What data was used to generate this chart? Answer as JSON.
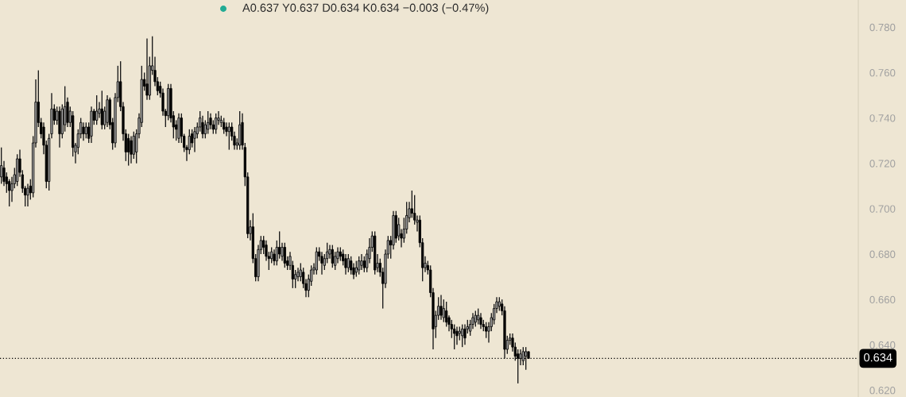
{
  "chart_data": {
    "type": "candlestick",
    "categories": [
      null,
      null,
      null,
      null,
      null,
      null,
      null,
      null,
      null,
      null,
      null,
      null,
      null,
      null,
      null,
      null,
      null,
      null,
      null,
      null,
      null,
      null,
      null,
      null,
      null,
      null,
      null,
      null,
      null,
      null,
      null,
      null,
      null,
      null,
      null,
      null,
      null,
      null,
      null,
      null,
      null,
      null,
      null,
      null,
      null,
      null,
      null,
      null,
      null,
      null,
      null,
      null,
      null,
      null,
      null,
      null,
      null,
      null,
      null,
      null,
      null,
      null,
      null,
      null,
      null,
      null,
      null,
      null,
      null,
      null,
      null,
      null,
      null,
      null,
      null,
      null,
      null,
      null,
      null,
      null,
      null,
      null,
      null,
      null,
      null,
      null,
      null,
      null,
      null,
      null,
      null,
      null,
      null,
      null,
      null,
      null,
      null,
      null,
      null,
      null,
      null,
      null,
      null,
      null,
      null,
      null,
      null,
      null,
      null,
      null,
      null,
      null,
      null,
      null,
      null,
      null,
      null,
      null,
      null,
      null,
      null,
      null,
      null,
      null,
      null,
      null,
      null,
      null,
      null,
      null,
      null,
      null,
      null,
      null,
      null,
      null,
      null,
      null,
      null,
      null,
      null,
      null,
      null,
      null,
      null,
      null,
      null,
      null,
      null,
      null,
      null,
      null,
      null,
      null,
      null,
      null,
      null,
      null,
      null,
      null,
      null,
      null,
      null,
      null,
      null,
      null,
      null,
      null,
      null,
      null,
      null,
      null,
      null,
      null,
      null,
      null,
      null,
      null,
      null,
      null,
      null,
      null,
      null,
      null,
      null,
      null,
      null,
      null,
      null,
      null,
      null,
      null,
      null,
      null,
      null,
      null,
      null,
      null,
      null,
      null,
      null,
      null,
      null,
      null,
      null,
      null,
      null,
      null,
      null,
      null,
      null,
      null,
      null,
      null,
      null,
      null,
      null,
      null,
      null,
      null,
      null,
      null,
      null,
      null,
      null,
      null,
      null,
      null,
      null,
      null,
      null,
      null,
      null,
      null,
      null,
      null,
      null,
      null,
      null,
      null,
      null,
      null,
      null,
      null,
      null,
      null,
      null,
      null,
      null,
      null,
      null,
      null,
      null,
      null,
      null,
      null,
      null,
      null,
      null,
      null,
      null,
      null,
      null,
      null,
      null,
      null,
      null,
      null,
      null,
      null,
      null,
      null,
      null,
      null,
      null,
      null,
      null,
      null,
      null,
      null,
      null,
      null,
      null,
      null,
      null,
      null,
      null,
      null,
      null,
      null,
      null,
      null,
      null,
      null,
      null,
      null,
      null,
      null,
      null,
      null,
      null,
      null,
      null,
      null,
      null,
      null,
      null,
      null,
      null,
      null,
      null,
      null,
      null,
      null,
      null,
      null,
      null,
      null,
      null,
      null,
      null,
      null,
      null,
      null
    ],
    "ohlc": [
      [
        0.714,
        0.727,
        0.711,
        0.719
      ],
      [
        0.718,
        0.721,
        0.71,
        0.712
      ],
      [
        0.714,
        0.716,
        0.707,
        0.711
      ],
      [
        0.712,
        0.713,
        0.701,
        0.708
      ],
      [
        0.708,
        0.714,
        0.703,
        0.711
      ],
      [
        0.711,
        0.718,
        0.709,
        0.715
      ],
      [
        0.712,
        0.724,
        0.71,
        0.722
      ],
      [
        0.722,
        0.726,
        0.714,
        0.716
      ],
      [
        0.715,
        0.717,
        0.707,
        0.709
      ],
      [
        0.709,
        0.71,
        0.701,
        0.706
      ],
      [
        0.706,
        0.711,
        0.701,
        0.709
      ],
      [
        0.71,
        0.713,
        0.704,
        0.707
      ],
      [
        0.707,
        0.732,
        0.705,
        0.729
      ],
      [
        0.729,
        0.757,
        0.727,
        0.747
      ],
      [
        0.747,
        0.761,
        0.736,
        0.738
      ],
      [
        0.738,
        0.74,
        0.731,
        0.733
      ],
      [
        0.736,
        0.738,
        0.724,
        0.728
      ],
      [
        0.728,
        0.73,
        0.709,
        0.712
      ],
      [
        0.712,
        0.733,
        0.708,
        0.731
      ],
      [
        0.733,
        0.751,
        0.731,
        0.744
      ],
      [
        0.744,
        0.746,
        0.737,
        0.739
      ],
      [
        0.739,
        0.745,
        0.737,
        0.743
      ],
      [
        0.743,
        0.745,
        0.727,
        0.733
      ],
      [
        0.733,
        0.746,
        0.731,
        0.744
      ],
      [
        0.737,
        0.754,
        0.734,
        0.745
      ],
      [
        0.747,
        0.749,
        0.736,
        0.738
      ],
      [
        0.738,
        0.745,
        0.736,
        0.743
      ],
      [
        0.741,
        0.743,
        0.723,
        0.727
      ],
      [
        0.725,
        0.729,
        0.72,
        0.728
      ],
      [
        0.727,
        0.735,
        0.724,
        0.733
      ],
      [
        0.733,
        0.74,
        0.731,
        0.738
      ],
      [
        0.736,
        0.738,
        0.73,
        0.733
      ],
      [
        0.733,
        0.738,
        0.731,
        0.736
      ],
      [
        0.736,
        0.738,
        0.729,
        0.731
      ],
      [
        0.732,
        0.745,
        0.729,
        0.743
      ],
      [
        0.743,
        0.744,
        0.737,
        0.739
      ],
      [
        0.739,
        0.75,
        0.737,
        0.743
      ],
      [
        0.742,
        0.747,
        0.74,
        0.744
      ],
      [
        0.744,
        0.752,
        0.735,
        0.737
      ],
      [
        0.737,
        0.745,
        0.735,
        0.743
      ],
      [
        0.738,
        0.75,
        0.736,
        0.748
      ],
      [
        0.748,
        0.749,
        0.735,
        0.737
      ],
      [
        0.738,
        0.74,
        0.726,
        0.729
      ],
      [
        0.729,
        0.751,
        0.727,
        0.749
      ],
      [
        0.749,
        0.763,
        0.747,
        0.756
      ],
      [
        0.756,
        0.765,
        0.743,
        0.745
      ],
      [
        0.745,
        0.747,
        0.73,
        0.733
      ],
      [
        0.733,
        0.735,
        0.721,
        0.725
      ],
      [
        0.731,
        0.733,
        0.719,
        0.725
      ],
      [
        0.73,
        0.732,
        0.72,
        0.724
      ],
      [
        0.724,
        0.734,
        0.722,
        0.732
      ],
      [
        0.725,
        0.735,
        0.72,
        0.733
      ],
      [
        0.733,
        0.742,
        0.731,
        0.74
      ],
      [
        0.738,
        0.763,
        0.736,
        0.757
      ],
      [
        0.757,
        0.76,
        0.752,
        0.754
      ],
      [
        0.755,
        0.775,
        0.748,
        0.75
      ],
      [
        0.75,
        0.767,
        0.748,
        0.763
      ],
      [
        0.761,
        0.776,
        0.759,
        0.763
      ],
      [
        0.761,
        0.767,
        0.754,
        0.756
      ],
      [
        0.756,
        0.758,
        0.75,
        0.752
      ],
      [
        0.754,
        0.756,
        0.749,
        0.751
      ],
      [
        0.751,
        0.753,
        0.741,
        0.743
      ],
      [
        0.743,
        0.744,
        0.736,
        0.741
      ],
      [
        0.741,
        0.755,
        0.739,
        0.753
      ],
      [
        0.753,
        0.755,
        0.738,
        0.74
      ],
      [
        0.741,
        0.743,
        0.731,
        0.736
      ],
      [
        0.737,
        0.739,
        0.73,
        0.735
      ],
      [
        0.731,
        0.742,
        0.729,
        0.74
      ],
      [
        0.74,
        0.742,
        0.729,
        0.732
      ],
      [
        0.732,
        0.733,
        0.725,
        0.727
      ],
      [
        0.727,
        0.728,
        0.721,
        0.726
      ],
      [
        0.726,
        0.735,
        0.724,
        0.732
      ],
      [
        0.733,
        0.735,
        0.727,
        0.729
      ],
      [
        0.731,
        0.736,
        0.725,
        0.734
      ],
      [
        0.733,
        0.738,
        0.731,
        0.736
      ],
      [
        0.736,
        0.743,
        0.734,
        0.74
      ],
      [
        0.738,
        0.741,
        0.731,
        0.733
      ],
      [
        0.733,
        0.739,
        0.731,
        0.737
      ],
      [
        0.735,
        0.743,
        0.733,
        0.738
      ],
      [
        0.74,
        0.742,
        0.735,
        0.737
      ],
      [
        0.737,
        0.739,
        0.733,
        0.735
      ],
      [
        0.735,
        0.742,
        0.733,
        0.74
      ],
      [
        0.739,
        0.743,
        0.737,
        0.74
      ],
      [
        0.738,
        0.741,
        0.736,
        0.739
      ],
      [
        0.738,
        0.74,
        0.733,
        0.735
      ],
      [
        0.736,
        0.738,
        0.732,
        0.734
      ],
      [
        0.734,
        0.738,
        0.726,
        0.736
      ],
      [
        0.736,
        0.738,
        0.73,
        0.732
      ],
      [
        0.732,
        0.734,
        0.726,
        0.728
      ],
      [
        0.728,
        0.731,
        0.726,
        0.729
      ],
      [
        0.728,
        0.743,
        0.726,
        0.737
      ],
      [
        0.738,
        0.742,
        0.726,
        0.728
      ],
      [
        0.727,
        0.729,
        0.71,
        0.714
      ],
      [
        0.714,
        0.716,
        0.687,
        0.689
      ],
      [
        0.689,
        0.695,
        0.686,
        0.692
      ],
      [
        0.692,
        0.698,
        0.676,
        0.678
      ],
      [
        0.678,
        0.68,
        0.668,
        0.67
      ],
      [
        0.67,
        0.684,
        0.668,
        0.682
      ],
      [
        0.682,
        0.688,
        0.68,
        0.686
      ],
      [
        0.686,
        0.688,
        0.68,
        0.683
      ],
      [
        0.684,
        0.686,
        0.677,
        0.679
      ],
      [
        0.679,
        0.681,
        0.673,
        0.678
      ],
      [
        0.678,
        0.683,
        0.676,
        0.681
      ],
      [
        0.68,
        0.682,
        0.675,
        0.677
      ],
      [
        0.677,
        0.686,
        0.675,
        0.683
      ],
      [
        0.683,
        0.69,
        0.678,
        0.68
      ],
      [
        0.679,
        0.685,
        0.677,
        0.683
      ],
      [
        0.683,
        0.685,
        0.674,
        0.676
      ],
      [
        0.677,
        0.679,
        0.673,
        0.675
      ],
      [
        0.675,
        0.681,
        0.673,
        0.679
      ],
      [
        0.675,
        0.677,
        0.665,
        0.669
      ],
      [
        0.669,
        0.673,
        0.665,
        0.671
      ],
      [
        0.67,
        0.674,
        0.668,
        0.672
      ],
      [
        0.67,
        0.676,
        0.668,
        0.673
      ],
      [
        0.672,
        0.674,
        0.665,
        0.667
      ],
      [
        0.667,
        0.669,
        0.661,
        0.664
      ],
      [
        0.664,
        0.671,
        0.661,
        0.669
      ],
      [
        0.668,
        0.675,
        0.666,
        0.673
      ],
      [
        0.673,
        0.676,
        0.671,
        0.674
      ],
      [
        0.673,
        0.683,
        0.671,
        0.681
      ],
      [
        0.681,
        0.683,
        0.677,
        0.679
      ],
      [
        0.679,
        0.681,
        0.671,
        0.676
      ],
      [
        0.675,
        0.68,
        0.673,
        0.678
      ],
      [
        0.678,
        0.685,
        0.676,
        0.681
      ],
      [
        0.68,
        0.684,
        0.678,
        0.682
      ],
      [
        0.682,
        0.684,
        0.674,
        0.676
      ],
      [
        0.675,
        0.681,
        0.673,
        0.679
      ],
      [
        0.678,
        0.683,
        0.676,
        0.681
      ],
      [
        0.681,
        0.683,
        0.677,
        0.679
      ],
      [
        0.68,
        0.682,
        0.675,
        0.677
      ],
      [
        0.678,
        0.68,
        0.671,
        0.674
      ],
      [
        0.674,
        0.68,
        0.672,
        0.678
      ],
      [
        0.677,
        0.679,
        0.671,
        0.673
      ],
      [
        0.674,
        0.676,
        0.669,
        0.671
      ],
      [
        0.672,
        0.677,
        0.67,
        0.674
      ],
      [
        0.673,
        0.679,
        0.671,
        0.677
      ],
      [
        0.675,
        0.68,
        0.673,
        0.677
      ],
      [
        0.677,
        0.679,
        0.672,
        0.674
      ],
      [
        0.674,
        0.682,
        0.672,
        0.68
      ],
      [
        0.678,
        0.687,
        0.676,
        0.683
      ],
      [
        0.683,
        0.69,
        0.681,
        0.688
      ],
      [
        0.688,
        0.69,
        0.671,
        0.673
      ],
      [
        0.674,
        0.68,
        0.672,
        0.676
      ],
      [
        0.676,
        0.678,
        0.67,
        0.672
      ],
      [
        0.672,
        0.674,
        0.656,
        0.667
      ],
      [
        0.667,
        0.682,
        0.665,
        0.68
      ],
      [
        0.68,
        0.688,
        0.678,
        0.686
      ],
      [
        0.686,
        0.688,
        0.678,
        0.684
      ],
      [
        0.684,
        0.699,
        0.682,
        0.697
      ],
      [
        0.697,
        0.699,
        0.685,
        0.687
      ],
      [
        0.688,
        0.696,
        0.686,
        0.693
      ],
      [
        0.689,
        0.691,
        0.683,
        0.687
      ],
      [
        0.687,
        0.696,
        0.685,
        0.691
      ],
      [
        0.691,
        0.703,
        0.689,
        0.697
      ],
      [
        0.696,
        0.703,
        0.694,
        0.7
      ],
      [
        0.7,
        0.708,
        0.696,
        0.698
      ],
      [
        0.698,
        0.706,
        0.693,
        0.695
      ],
      [
        0.694,
        0.697,
        0.69,
        0.695
      ],
      [
        0.695,
        0.697,
        0.683,
        0.685
      ],
      [
        0.685,
        0.687,
        0.668,
        0.674
      ],
      [
        0.674,
        0.679,
        0.672,
        0.676
      ],
      [
        0.675,
        0.677,
        0.671,
        0.673
      ],
      [
        0.673,
        0.675,
        0.661,
        0.663
      ],
      [
        0.663,
        0.665,
        0.638,
        0.647
      ],
      [
        0.648,
        0.655,
        0.643,
        0.653
      ],
      [
        0.653,
        0.661,
        0.651,
        0.657
      ],
      [
        0.657,
        0.662,
        0.651,
        0.653
      ],
      [
        0.652,
        0.66,
        0.65,
        0.656
      ],
      [
        0.655,
        0.659,
        0.648,
        0.65
      ],
      [
        0.652,
        0.653,
        0.646,
        0.649
      ],
      [
        0.649,
        0.651,
        0.643,
        0.647
      ],
      [
        0.647,
        0.649,
        0.638,
        0.645
      ],
      [
        0.646,
        0.648,
        0.64,
        0.644
      ],
      [
        0.645,
        0.648,
        0.642,
        0.646
      ],
      [
        0.644,
        0.649,
        0.639,
        0.647
      ],
      [
        0.647,
        0.649,
        0.64,
        0.643
      ],
      [
        0.647,
        0.651,
        0.645,
        0.648
      ],
      [
        0.646,
        0.651,
        0.644,
        0.649
      ],
      [
        0.649,
        0.654,
        0.647,
        0.652
      ],
      [
        0.65,
        0.655,
        0.648,
        0.653
      ],
      [
        0.651,
        0.656,
        0.649,
        0.653
      ],
      [
        0.652,
        0.654,
        0.647,
        0.649
      ],
      [
        0.649,
        0.651,
        0.646,
        0.648
      ],
      [
        0.648,
        0.65,
        0.643,
        0.646
      ],
      [
        0.646,
        0.65,
        0.641,
        0.648
      ],
      [
        0.648,
        0.654,
        0.646,
        0.652
      ],
      [
        0.651,
        0.658,
        0.649,
        0.656
      ],
      [
        0.656,
        0.661,
        0.654,
        0.659
      ],
      [
        0.657,
        0.661,
        0.655,
        0.659
      ],
      [
        0.658,
        0.66,
        0.653,
        0.655
      ],
      [
        0.655,
        0.657,
        0.634,
        0.638
      ],
      [
        0.638,
        0.644,
        0.636,
        0.642
      ],
      [
        0.642,
        0.645,
        0.64,
        0.643
      ],
      [
        0.643,
        0.645,
        0.637,
        0.639
      ],
      [
        0.639,
        0.641,
        0.633,
        0.635
      ],
      [
        0.636,
        0.638,
        0.623,
        0.634
      ],
      [
        0.634,
        0.638,
        0.631,
        0.636
      ],
      [
        0.633,
        0.639,
        0.631,
        0.637
      ],
      [
        0.635,
        0.639,
        0.629,
        0.637
      ],
      [
        0.637,
        0.637,
        0.634,
        0.634
      ],
      null,
      null,
      null,
      null,
      null,
      null,
      null,
      null,
      null,
      null,
      null,
      null,
      null,
      null,
      null,
      null,
      null,
      null,
      null,
      null,
      null,
      null,
      null,
      null,
      null,
      null,
      null,
      null,
      null,
      null,
      null,
      null,
      null,
      null,
      null,
      null,
      null,
      null,
      null,
      null,
      null,
      null,
      null,
      null,
      null,
      null,
      null,
      null,
      null,
      null,
      null,
      null,
      null,
      null,
      null,
      null,
      null,
      null,
      null,
      null,
      null,
      null,
      null,
      null,
      null,
      null,
      null,
      null,
      null,
      null,
      null,
      null,
      null,
      null,
      null,
      null,
      null,
      null,
      null,
      null,
      null,
      null,
      null,
      null,
      null,
      null,
      null,
      null,
      null,
      null,
      null,
      null,
      null,
      null,
      null,
      null,
      null,
      null,
      null,
      null,
      null,
      null,
      null,
      null,
      null,
      null,
      null,
      null,
      null,
      null,
      null,
      null,
      null,
      null,
      null,
      null,
      null,
      null,
      null,
      null,
      null,
      null,
      null,
      null
    ],
    "colors": [
      "#a3a3a3",
      "#000000",
      "#000000",
      "#000000",
      "#a3a3a3",
      "#a3a3a3",
      "#a3a3a3",
      "#000000",
      "#000000",
      "#000000",
      "#a3a3a3",
      "#000000",
      "#a3a3a3",
      "#a3a3a3",
      "#000000",
      "#000000",
      "#000000",
      "#000000",
      "#a3a3a3",
      "#a3a3a3",
      "#000000",
      "#a3a3a3",
      "#000000",
      "#a3a3a3",
      "#a3a3a3",
      "#000000",
      "#a3a3a3",
      "#000000",
      "#a3a3a3",
      "#a3a3a3",
      "#a3a3a3",
      "#000000",
      "#a3a3a3",
      "#000000",
      "#a3a3a3",
      "#000000",
      "#a3a3a3",
      "#a3a3a3",
      "#000000",
      "#a3a3a3",
      "#a3a3a3",
      "#000000",
      "#000000",
      "#a3a3a3",
      "#a3a3a3",
      "#000000",
      "#000000",
      "#000000",
      "#000000",
      "#000000",
      "#a3a3a3",
      "#a3a3a3",
      "#a3a3a3",
      "#a3a3a3",
      "#000000",
      "#000000",
      "#a3a3a3",
      "#a3a3a3",
      "#000000",
      "#000000",
      "#000000",
      "#000000",
      "#000000",
      "#a3a3a3",
      "#000000",
      "#000000",
      "#000000",
      "#a3a3a3",
      "#000000",
      "#000000",
      "#000000",
      "#a3a3a3",
      "#000000",
      "#a3a3a3",
      "#a3a3a3",
      "#a3a3a3",
      "#000000",
      "#a3a3a3",
      "#a3a3a3",
      "#000000",
      "#000000",
      "#a3a3a3",
      "#a3a3a3",
      "#a3a3a3",
      "#000000",
      "#000000",
      "#a3a3a3",
      "#000000",
      "#000000",
      "#a3a3a3",
      "#a3a3a3",
      "#000000",
      "#000000",
      "#000000",
      "#a3a3a3",
      "#000000",
      "#000000",
      "#a3a3a3",
      "#a3a3a3",
      "#000000",
      "#000000",
      "#000000",
      "#a3a3a3",
      "#000000",
      "#a3a3a3",
      "#000000",
      "#a3a3a3",
      "#000000",
      "#000000",
      "#a3a3a3",
      "#000000",
      "#a3a3a3",
      "#a3a3a3",
      "#a3a3a3",
      "#000000",
      "#000000",
      "#a3a3a3",
      "#a3a3a3",
      "#a3a3a3",
      "#a3a3a3",
      "#000000",
      "#000000",
      "#a3a3a3",
      "#a3a3a3",
      "#a3a3a3",
      "#000000",
      "#a3a3a3",
      "#a3a3a3",
      "#000000",
      "#000000",
      "#000000",
      "#a3a3a3",
      "#000000",
      "#000000",
      "#a3a3a3",
      "#a3a3a3",
      "#a3a3a3",
      "#000000",
      "#a3a3a3",
      "#a3a3a3",
      "#a3a3a3",
      "#000000",
      "#a3a3a3",
      "#000000",
      "#000000",
      "#a3a3a3",
      "#a3a3a3",
      "#000000",
      "#a3a3a3",
      "#000000",
      "#a3a3a3",
      "#000000",
      "#a3a3a3",
      "#a3a3a3",
      "#a3a3a3",
      "#000000",
      "#000000",
      "#a3a3a3",
      "#000000",
      "#000000",
      "#a3a3a3",
      "#000000",
      "#000000",
      "#000000",
      "#a3a3a3",
      "#a3a3a3",
      "#000000",
      "#a3a3a3",
      "#000000",
      "#000000",
      "#000000",
      "#000000",
      "#000000",
      "#a3a3a3",
      "#a3a3a3",
      "#000000",
      "#a3a3a3",
      "#a3a3a3",
      "#a3a3a3",
      "#a3a3a3",
      "#a3a3a3",
      "#000000",
      "#000000",
      "#000000",
      "#a3a3a3",
      "#a3a3a3",
      "#a3a3a3",
      "#a3a3a3",
      "#a3a3a3",
      "#000000",
      "#000000",
      "#a3a3a3",
      "#a3a3a3",
      "#000000",
      "#000000",
      "#000000",
      "#a3a3a3",
      "#a3a3a3",
      "#a3a3a3",
      "#000000",
      null,
      null,
      null,
      null,
      null,
      null,
      null,
      null,
      null,
      null,
      null,
      null,
      null,
      null,
      null,
      null,
      null,
      null,
      null,
      null,
      null,
      null,
      null,
      null,
      null,
      null,
      null,
      null,
      null,
      null,
      null,
      null,
      null,
      null,
      null,
      null,
      null,
      null,
      null,
      null,
      null,
      null,
      null,
      null,
      null,
      null,
      null,
      null,
      null,
      null,
      null,
      null,
      null,
      null,
      null,
      null,
      null,
      null,
      null,
      null,
      null,
      null,
      null,
      null,
      null,
      null,
      null,
      null,
      null,
      null,
      null,
      null,
      null,
      null,
      null,
      null,
      null,
      null,
      null,
      null,
      null,
      null,
      null,
      null,
      null,
      null,
      null,
      null,
      null,
      null,
      null,
      null,
      null,
      null,
      null,
      null,
      null,
      null,
      null,
      null,
      null,
      null,
      null,
      null,
      null,
      null,
      null,
      null,
      null,
      null,
      null,
      null,
      null,
      null,
      null,
      null,
      null,
      null,
      null,
      null,
      null,
      null,
      null,
      null
    ],
    "ylim": [
      0.617,
      0.792
    ],
    "yticks": [
      {
        "value": 0.62,
        "label": "0.620"
      },
      {
        "value": 0.64,
        "label": "0.640"
      },
      {
        "value": 0.66,
        "label": "0.660"
      },
      {
        "value": 0.68,
        "label": "0.680"
      },
      {
        "value": 0.7,
        "label": "0.700"
      },
      {
        "value": 0.72,
        "label": "0.720"
      },
      {
        "value": 0.74,
        "label": "0.740"
      },
      {
        "value": 0.76,
        "label": "0.760"
      },
      {
        "value": 0.78,
        "label": "0.780"
      }
    ],
    "ref_lines": [
      {
        "axis": "y",
        "value": 0.634,
        "label": "0.634",
        "color": "#000000",
        "line_style": "dotted"
      }
    ],
    "annotations": [
      "A0.637 Y0.637 D0.634 K0.634 −0.003 (−0.47%)"
    ]
  }
}
